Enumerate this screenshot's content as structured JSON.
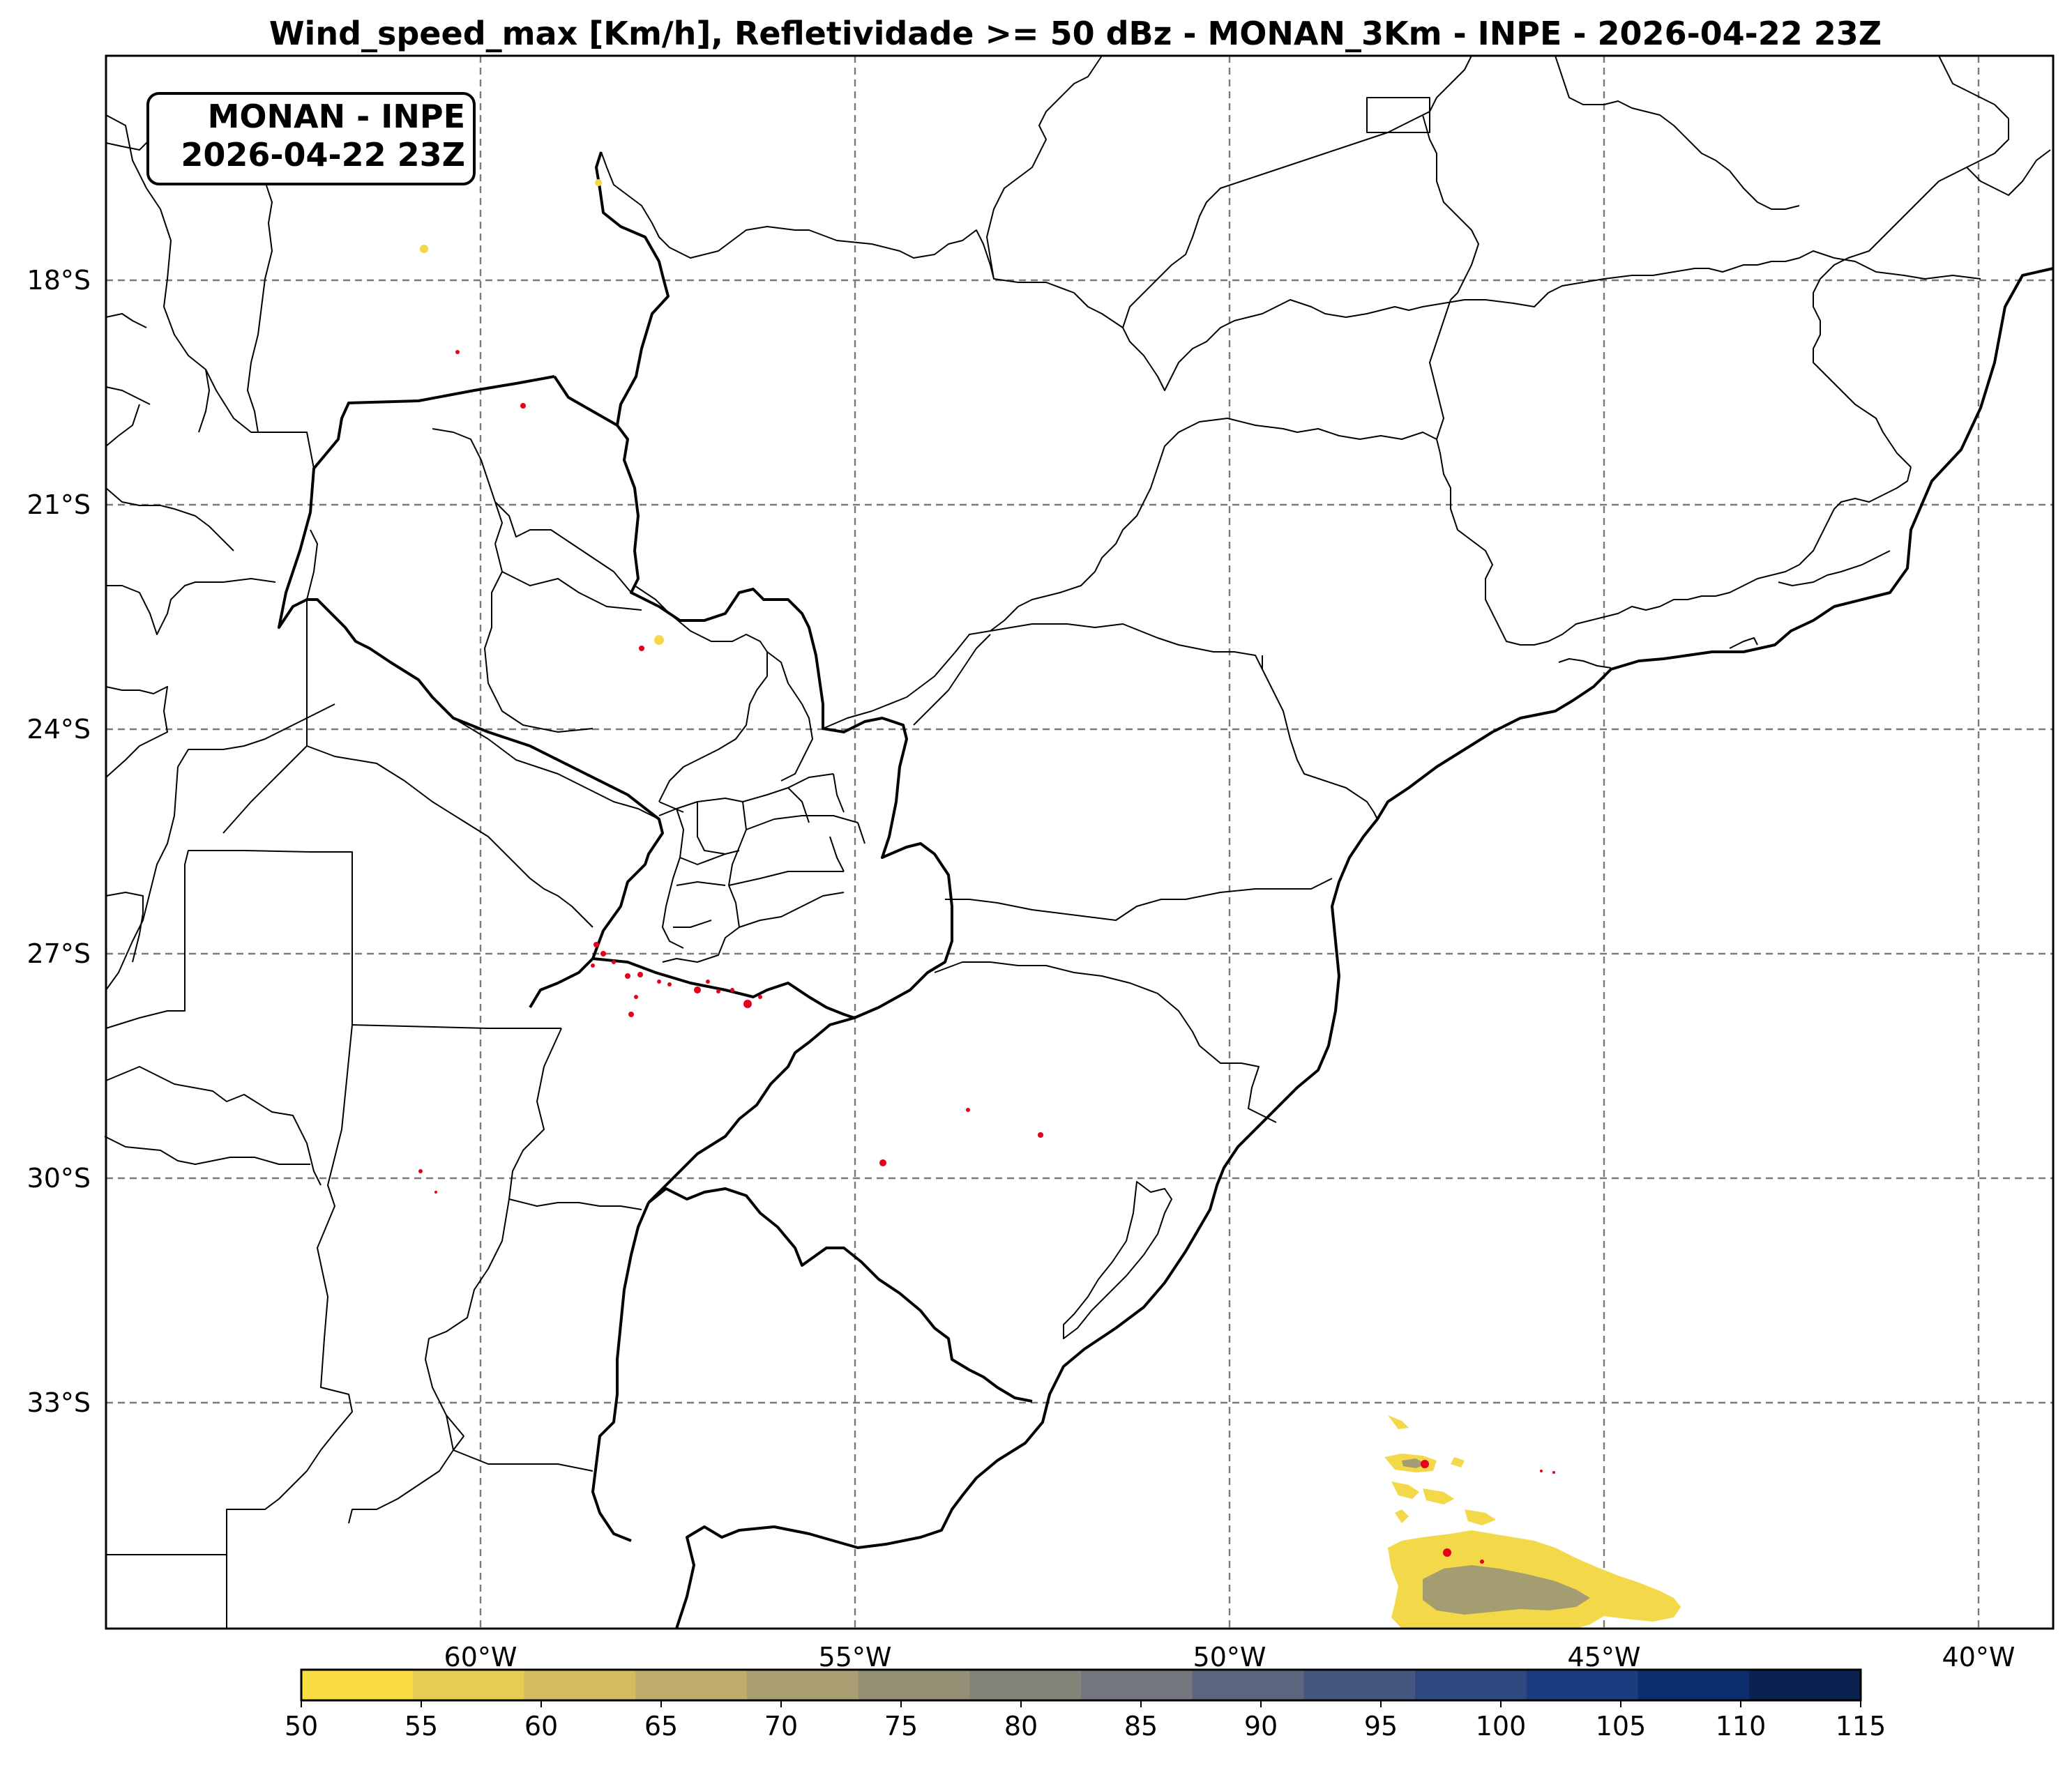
{
  "title": "Wind_speed_max [Km/h], Refletividade >= 50 dBz - MONAN_3Km - INPE - 2026-04-22 23Z",
  "badge": {
    "line1": "MONAN - INPE",
    "line2": "2026-04-22 23Z"
  },
  "lat_ticks": [
    "18°S",
    "21°S",
    "24°S",
    "27°S",
    "30°S",
    "33°S"
  ],
  "lon_ticks": [
    "60°W",
    "55°W",
    "50°W",
    "45°W",
    "40°W"
  ],
  "colorbar": {
    "ticks": [
      "50",
      "55",
      "60",
      "65",
      "70",
      "75",
      "80",
      "85",
      "90",
      "95",
      "100",
      "105",
      "110",
      "115"
    ],
    "colors": [
      "#f9dd42",
      "#e5cc55",
      "#d2bb60",
      "#bdac6b",
      "#a89e72",
      "#958f76",
      "#84837a",
      "#73767d",
      "#5b657e",
      "#45567f",
      "#2e4980",
      "#1a3c7e",
      "#0d2e6c",
      "#0a2250"
    ]
  },
  "fields": {
    "wind_swath_color": "#f3d849",
    "wind_core_color": "#8a8a80",
    "reflectivity_color": "#e6001a"
  }
}
